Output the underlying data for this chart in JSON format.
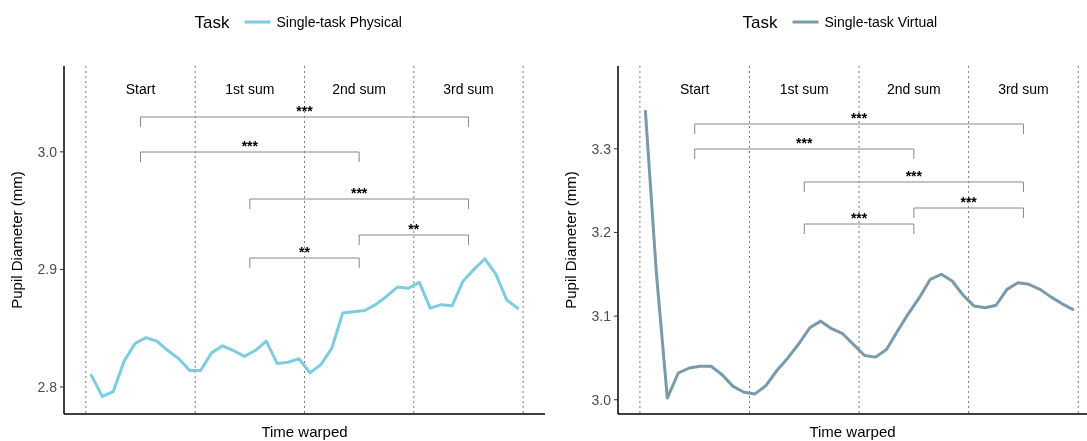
{
  "chart_data": [
    {
      "type": "line",
      "legend_title": "Task",
      "legend": "top",
      "xlabel": "Time warped",
      "ylabel": "Pupil Diameter (mm)",
      "ylim": [
        2.777,
        3.073
      ],
      "yticks": [
        2.8,
        2.9,
        {
          "value": 3,
          "label": "3.0"
        }
      ],
      "tick_labels": "y",
      "categories": [
        null,
        null,
        null,
        null,
        null,
        null,
        null,
        null,
        null,
        null,
        null,
        null,
        null,
        null,
        null,
        null,
        null,
        null,
        null,
        null,
        null,
        null,
        null,
        null,
        null,
        null,
        null,
        null,
        null,
        null,
        null,
        null,
        null,
        null,
        null,
        null,
        null,
        null,
        null,
        null
      ],
      "series": [
        {
          "name": "Single-task Physical",
          "color": "#7ccde0",
          "values": [
            2.81,
            2.792,
            2.796,
            2.822,
            2.837,
            2.842,
            2.839,
            2.831,
            2.824,
            2.814,
            2.814,
            2.829,
            2.835,
            2.831,
            2.826,
            2.831,
            2.839,
            2.82,
            2.821,
            2.824,
            2.812,
            2.819,
            2.833,
            2.863,
            2.864,
            2.865,
            2.87,
            2.877,
            2.885,
            2.884,
            2.889,
            2.867,
            2.87,
            2.869,
            2.89,
            2.9,
            2.909,
            2.896,
            2.874,
            2.867
          ]
        }
      ],
      "annotations": [
        "Start",
        "1st sum",
        "2nd sum",
        "3rd sum",
        "***",
        "***",
        "***",
        "**",
        "**"
      ]
    },
    {
      "type": "line",
      "legend_title": "Task",
      "legend": "top",
      "xlabel": "Time warped",
      "ylabel": "Pupil Diameter (mm)",
      "ylim": [
        2.983,
        3.399
      ],
      "yticks": [
        {
          "value": 3,
          "label": "3.0"
        },
        3.1,
        3.2,
        3.3
      ],
      "tick_labels": "y",
      "categories": [
        null,
        null,
        null,
        null,
        null,
        null,
        null,
        null,
        null,
        null,
        null,
        null,
        null,
        null,
        null,
        null,
        null,
        null,
        null,
        null,
        null,
        null,
        null,
        null,
        null,
        null,
        null,
        null,
        null,
        null,
        null,
        null,
        null,
        null,
        null,
        null,
        null,
        null,
        null,
        null
      ],
      "series": [
        {
          "name": "Single-task Virtual",
          "color": "#7a9aab",
          "values": [
            3.345,
            3.152,
            3.002,
            3.032,
            3.038,
            3.04,
            3.04,
            3.03,
            3.016,
            3.009,
            3.007,
            3.017,
            3.035,
            3.05,
            3.067,
            3.086,
            3.094,
            3.085,
            3.079,
            3.066,
            3.053,
            3.051,
            3.06,
            3.082,
            3.103,
            3.122,
            3.144,
            3.15,
            3.142,
            3.125,
            3.112,
            3.11,
            3.113,
            3.132,
            3.14,
            3.138,
            3.132,
            3.123,
            3.115,
            3.108
          ]
        }
      ],
      "annotations": [
        "Start",
        "1st sum",
        "2nd sum",
        "3rd sum",
        "***",
        "***",
        "***",
        "***",
        "***"
      ]
    }
  ]
}
